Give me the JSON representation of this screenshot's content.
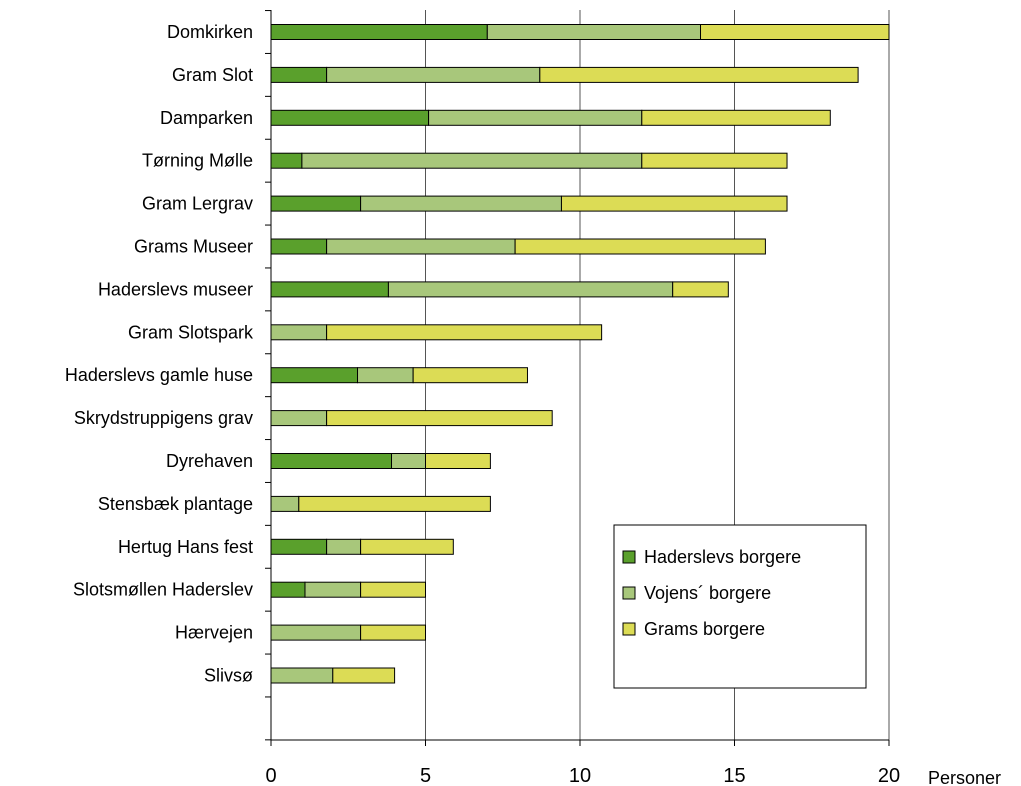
{
  "chart_data": {
    "type": "bar",
    "orientation": "horizontal",
    "stacked": true,
    "xlabel": "Personer",
    "xlim": [
      0,
      20
    ],
    "xticks": [
      0,
      5,
      10,
      15,
      20
    ],
    "grid": true,
    "legend_position": "bottom-right",
    "categories": [
      "Domkirken",
      "Gram Slot",
      "Damparken",
      "Tørning Mølle",
      "Gram Lergrav",
      "Grams Museer",
      "Haderslevs museer",
      "Gram Slotspark",
      "Haderslevs gamle huse",
      "Skrydstruppigens grav",
      "Dyrehaven",
      "Stensbæk plantage",
      "Hertug Hans fest",
      "Slotsmøllen Haderslev",
      "Hærvejen",
      "Slivsø"
    ],
    "series": [
      {
        "name": "Haderslevs borgere",
        "color": "#5aa02c",
        "values": [
          7,
          1.8,
          5.1,
          1,
          2.9,
          1.8,
          3.8,
          0,
          2.8,
          0,
          3.9,
          0,
          1.8,
          1.1,
          0,
          0
        ]
      },
      {
        "name": "Vojens´ borgere",
        "color": "#a8c77b",
        "values": [
          6.9,
          6.9,
          6.9,
          11,
          6.5,
          6.1,
          9.2,
          1.8,
          1.8,
          1.8,
          1.1,
          0.9,
          1.1,
          1.8,
          2.9,
          2
        ]
      },
      {
        "name": "Grams borgere",
        "color": "#dcdc55",
        "values": [
          6.1,
          10.3,
          6.1,
          4.7,
          7.3,
          8.1,
          1.8,
          8.9,
          3.7,
          7.3,
          2.1,
          6.2,
          3,
          2.1,
          2.1,
          2
        ]
      }
    ]
  }
}
